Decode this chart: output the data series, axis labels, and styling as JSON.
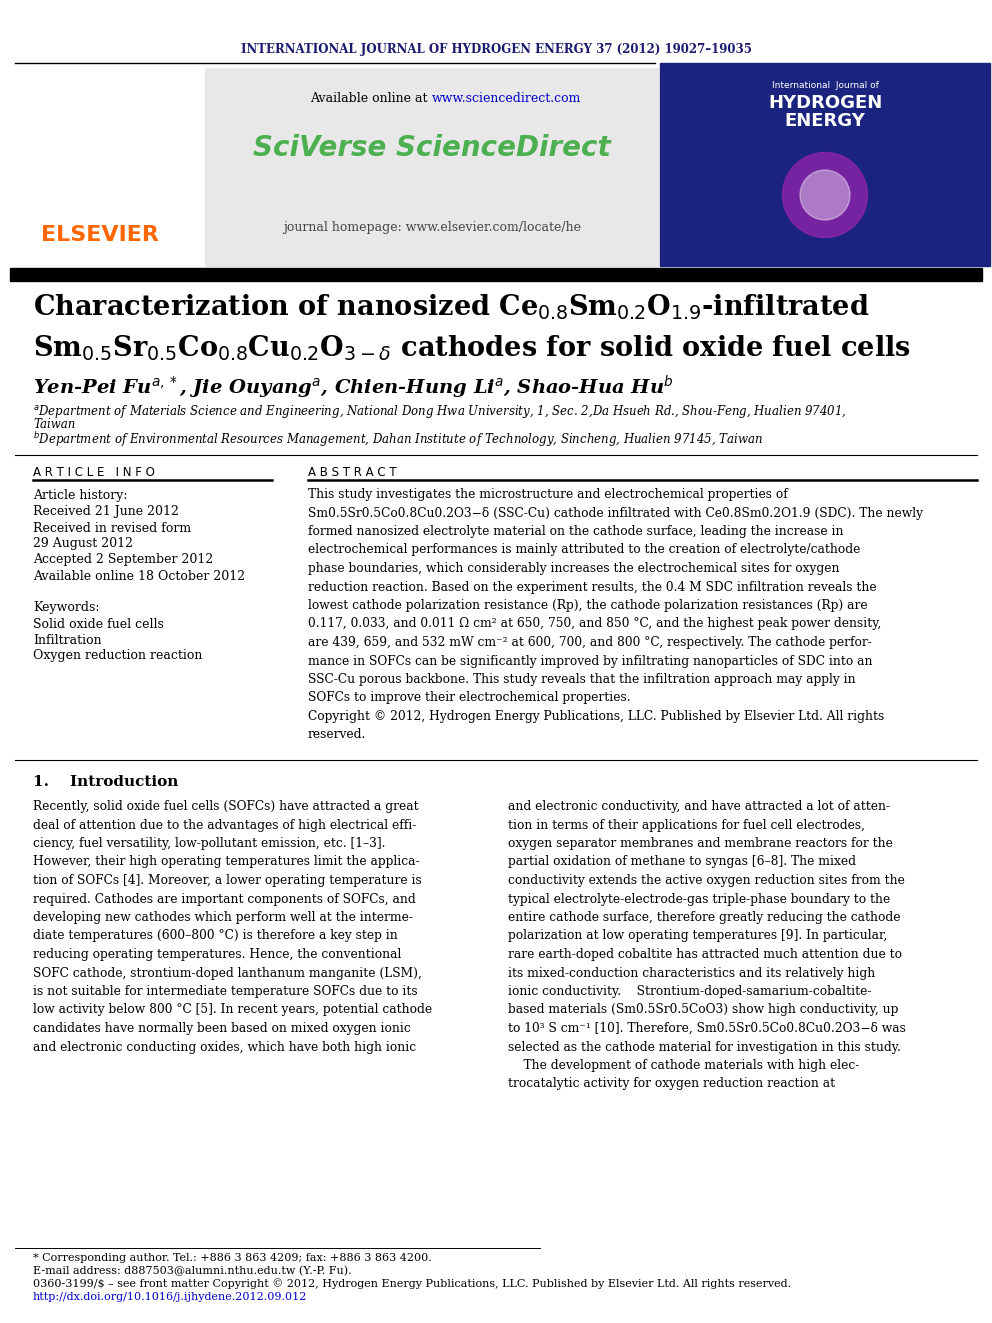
{
  "journal_header": "INTERNATIONAL JOURNAL OF HYDROGEN ENERGY 37 (2012) 19027–19035",
  "available_online": "Available online at ",
  "sciencedirect_url": "www.sciencedirect.com",
  "sciverse_text": "SciVerse ScienceDirect",
  "journal_homepage": "journal homepage: www.elsevier.com/locate/he",
  "elsevier_text": "ELSEVIER",
  "article_info_header": "A R T I C L E   I N F O",
  "abstract_header": "A B S T R A C T",
  "article_history_label": "Article history:",
  "received1": "Received 21 June 2012",
  "received2": "Received in revised form",
  "received2b": "29 August 2012",
  "accepted": "Accepted 2 September 2012",
  "available": "Available online 18 October 2012",
  "keywords_label": "Keywords:",
  "kw1": "Solid oxide fuel cells",
  "kw2": "Infiltration",
  "kw3": "Oxygen reduction reaction",
  "abstract_text": "This study investigates the microstructure and electrochemical properties of\nSm0.5Sr0.5Co0.8Cu0.2O3−δ (SSC-Cu) cathode infiltrated with Ce0.8Sm0.2O1.9 (SDC). The newly\nformed nanosized electrolyte material on the cathode surface, leading the increase in\nelectrochemical performances is mainly attributed to the creation of electrolyte/cathode\nphase boundaries, which considerably increases the electrochemical sites for oxygen\nreduction reaction. Based on the experiment results, the 0.4 M SDC infiltration reveals the\nlowest cathode polarization resistance (Rp), the cathode polarization resistances (Rp) are\n0.117, 0.033, and 0.011 Ω cm² at 650, 750, and 850 °C, and the highest peak power density,\nare 439, 659, and 532 mW cm⁻² at 600, 700, and 800 °C, respectively. The cathode perfor-\nmance in SOFCs can be significantly improved by infiltrating nanoparticles of SDC into an\nSSC-Cu porous backbone. This study reveals that the infiltration approach may apply in\nSOFCs to improve their electrochemical properties.\nCopyright © 2012, Hydrogen Energy Publications, LLC. Published by Elsevier Ltd. All rights\nreserved.",
  "section1_title": "1.    Introduction",
  "intro_col1": "Recently, solid oxide fuel cells (SOFCs) have attracted a great\ndeal of attention due to the advantages of high electrical effi-\nciency, fuel versatility, low-pollutant emission, etc. [1–3].\nHowever, their high operating temperatures limit the applica-\ntion of SOFCs [4]. Moreover, a lower operating temperature is\nrequired. Cathodes are important components of SOFCs, and\ndeveloping new cathodes which perform well at the interme-\ndiate temperatures (600–800 °C) is therefore a key step in\nreducing operating temperatures. Hence, the conventional\nSOFC cathode, strontium-doped lanthanum manganite (LSM),\nis not suitable for intermediate temperature SOFCs due to its\nlow activity below 800 °C [5]. In recent years, potential cathode\ncandidates have normally been based on mixed oxygen ionic\nand electronic conducting oxides, which have both high ionic",
  "intro_col2": "and electronic conductivity, and have attracted a lot of atten-\ntion in terms of their applications for fuel cell electrodes,\noxygen separator membranes and membrane reactors for the\npartial oxidation of methane to syngas [6–8]. The mixed\nconductivity extends the active oxygen reduction sites from the\ntypical electrolyte-electrode-gas triple-phase boundary to the\nentire cathode surface, therefore greatly reducing the cathode\npolarization at low operating temperatures [9]. In particular,\nrare earth-doped cobaltite has attracted much attention due to\nits mixed-conduction characteristics and its relatively high\nionic conductivity.    Strontium-doped-samarium-cobaltite-\nbased materials (Sm0.5Sr0.5CoO3) show high conductivity, up\nto 10³ S cm⁻¹ [10]. Therefore, Sm0.5Sr0.5Co0.8Cu0.2O3−δ was\nselected as the cathode material for investigation in this study.\n    The development of cathode materials with high elec-\ntrocatalytic activity for oxygen reduction reaction at",
  "footnote_star": "* Corresponding author. Tel.: +886 3 863 4209; fax: +886 3 863 4200.",
  "footnote_email": "E-mail address: d887503@alumni.nthu.edu.tw (Y.-P. Fu).",
  "footnote_issn": "0360-3199/$ – see front matter Copyright © 2012, Hydrogen Energy Publications, LLC. Published by Elsevier Ltd. All rights reserved.",
  "footnote_doi": "http://dx.doi.org/10.1016/j.ijhydene.2012.09.012",
  "header_color": "#1a1a6e",
  "elsevier_color": "#ff6600",
  "sciverse_color": "#4CAF50",
  "url_color": "#0000cc",
  "dark_bg": "#1a1a5e",
  "gray_bg": "#e8e8e8"
}
